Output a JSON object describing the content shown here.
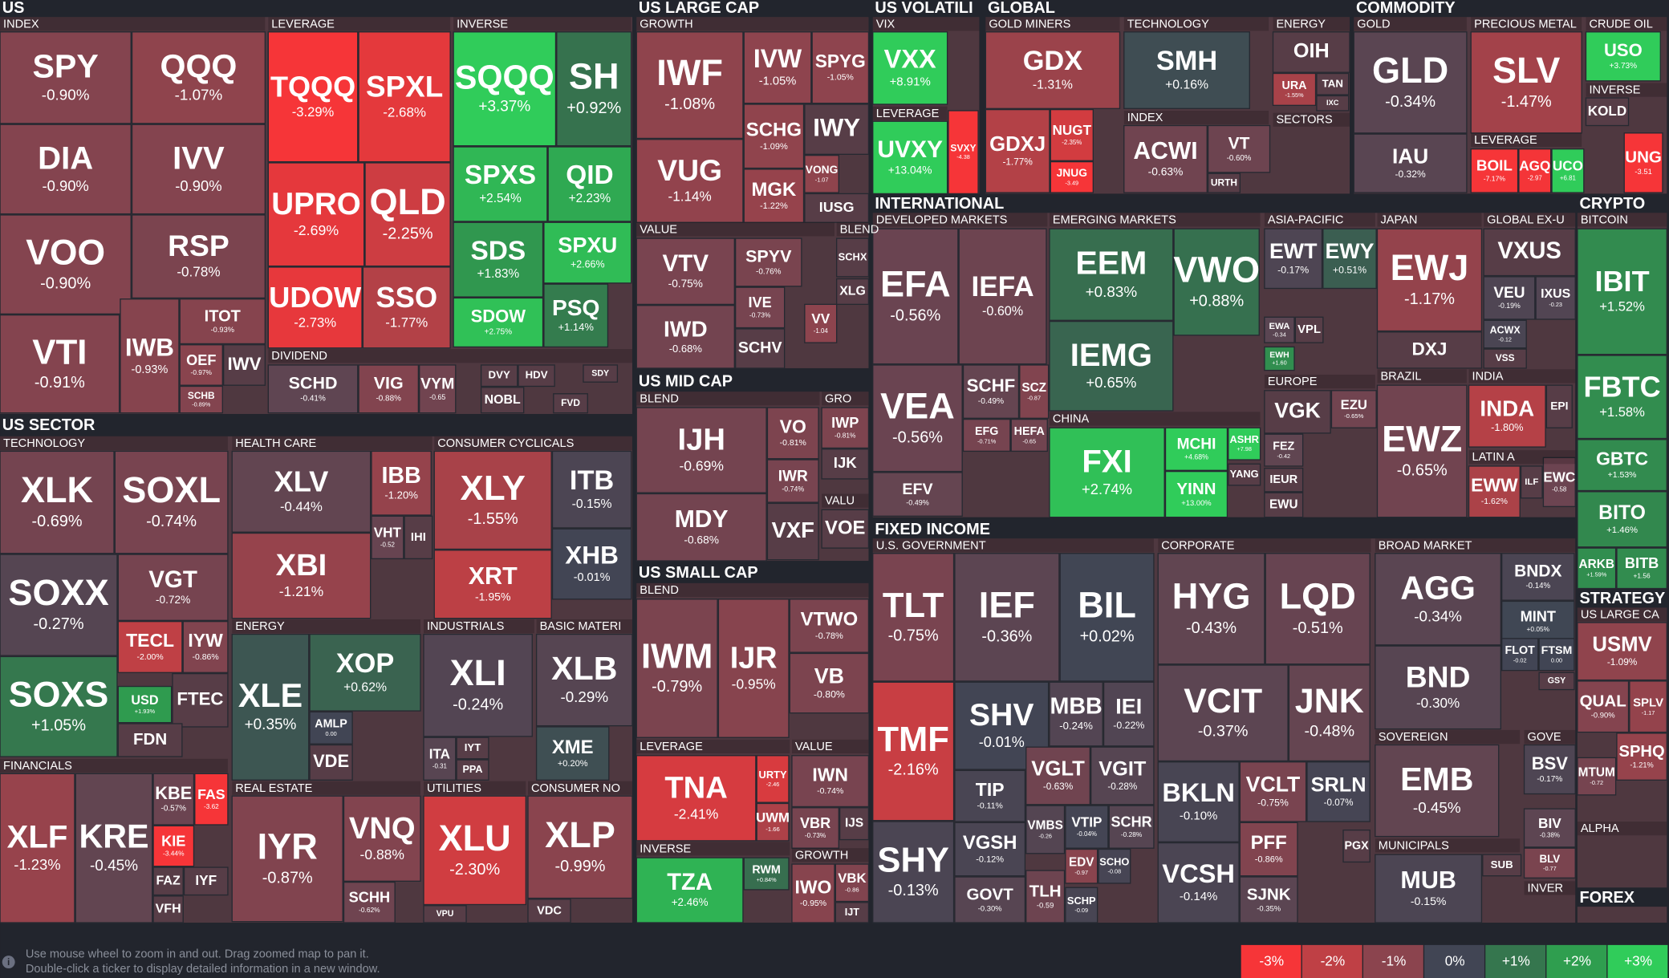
{
  "sections": [
    {
      "title": "US"
    },
    {
      "title": "US LARGE CAP"
    },
    {
      "title": "US VOLATILI"
    },
    {
      "title": "GLOBAL"
    },
    {
      "title": "COMMODITY"
    },
    {
      "title": "INTERNATIONAL"
    },
    {
      "title": "CRYPTO"
    },
    {
      "title": "US SECTOR"
    },
    {
      "title": "US MID CAP"
    },
    {
      "title": "US SMALL CAP"
    },
    {
      "title": "FIXED INCOME"
    },
    {
      "title": "STRATEGY"
    },
    {
      "title": "FOREX"
    }
  ],
  "groups": [
    {
      "title": "INDEX"
    },
    {
      "title": "LEVERAGE"
    },
    {
      "title": "INVERSE"
    },
    {
      "title": "DIVIDEND"
    },
    {
      "title": "GROWTH"
    },
    {
      "title": "VALUE"
    },
    {
      "title": "BLEND"
    },
    {
      "title": "VIX"
    },
    {
      "title": "LEVERAGE"
    },
    {
      "title": "GOLD MINERS"
    },
    {
      "title": "TECHNOLOGY"
    },
    {
      "title": "INDEX"
    },
    {
      "title": "ENERGY"
    },
    {
      "title": "SECTORS"
    },
    {
      "title": "GOLD"
    },
    {
      "title": "PRECIOUS METAL"
    },
    {
      "title": "LEVERAGE"
    },
    {
      "title": "CRUDE OIL"
    },
    {
      "title": "INVERSE"
    },
    {
      "title": "DEVELOPED MARKETS"
    },
    {
      "title": "EMERGING MARKETS"
    },
    {
      "title": "CHINA"
    },
    {
      "title": "ASIA-PACIFIC"
    },
    {
      "title": "EUROPE"
    },
    {
      "title": "JAPAN"
    },
    {
      "title": "GLOBAL EX-U"
    },
    {
      "title": "BRAZIL"
    },
    {
      "title": "INDIA"
    },
    {
      "title": "LATIN A"
    },
    {
      "title": "BITCOIN"
    },
    {
      "title": "BLEND"
    },
    {
      "title": "GRO"
    },
    {
      "title": "VALU"
    },
    {
      "title": "BLEND"
    },
    {
      "title": "LEVERAGE"
    },
    {
      "title": "VALUE"
    },
    {
      "title": "INVERSE"
    },
    {
      "title": "GROWTH"
    },
    {
      "title": "TECHNOLOGY"
    },
    {
      "title": "HEALTH CARE"
    },
    {
      "title": "CONSUMER CYCLICALS"
    },
    {
      "title": "ENERGY"
    },
    {
      "title": "INDUSTRIALS"
    },
    {
      "title": "BASIC MATERI"
    },
    {
      "title": "FINANCIALS"
    },
    {
      "title": "REAL ESTATE"
    },
    {
      "title": "UTILITIES"
    },
    {
      "title": "CONSUMER NO"
    },
    {
      "title": "U.S. GOVERNMENT"
    },
    {
      "title": "CORPORATE"
    },
    {
      "title": "BROAD MARKET"
    },
    {
      "title": "SOVEREIGN"
    },
    {
      "title": "GOVE"
    },
    {
      "title": "MUNICIPALS"
    },
    {
      "title": "INVER"
    },
    {
      "title": "US LARGE CA"
    },
    {
      "title": "ALPHA"
    }
  ],
  "tiles": [
    {
      "ticker": "SPY",
      "change": "-0.90%"
    },
    {
      "ticker": "QQQ",
      "change": "-1.07%"
    },
    {
      "ticker": "DIA",
      "change": "-0.90%"
    },
    {
      "ticker": "IVV",
      "change": "-0.90%"
    },
    {
      "ticker": "VOO",
      "change": "-0.90%"
    },
    {
      "ticker": "RSP",
      "change": "-0.78%"
    },
    {
      "ticker": "VTI",
      "change": "-0.91%"
    },
    {
      "ticker": "IWB",
      "change": "-0.93%"
    },
    {
      "ticker": "ITOT",
      "change": "-0.93%"
    },
    {
      "ticker": "OEF",
      "change": "-0.97%"
    },
    {
      "ticker": "IWV"
    },
    {
      "ticker": "SCHB",
      "change": "-0.89%"
    },
    {
      "ticker": "TQQQ",
      "change": "-3.29%"
    },
    {
      "ticker": "SPXL",
      "change": "-2.68%"
    },
    {
      "ticker": "UPRO",
      "change": "-2.69%"
    },
    {
      "ticker": "QLD",
      "change": "-2.25%"
    },
    {
      "ticker": "UDOW",
      "change": "-2.73%"
    },
    {
      "ticker": "SSO",
      "change": "-1.77%"
    },
    {
      "ticker": "SQQQ",
      "change": "+3.37%"
    },
    {
      "ticker": "SH",
      "change": "+0.92%"
    },
    {
      "ticker": "SPXS",
      "change": "+2.54%"
    },
    {
      "ticker": "QID",
      "change": "+2.23%"
    },
    {
      "ticker": "SDS",
      "change": "+1.83%"
    },
    {
      "ticker": "SPXU",
      "change": "+2.66%"
    },
    {
      "ticker": "SDOW",
      "change": "+2.75%"
    },
    {
      "ticker": "PSQ",
      "change": "+1.14%"
    },
    {
      "ticker": "SCHD",
      "change": "-0.41%"
    },
    {
      "ticker": "VIG",
      "change": "-0.88%"
    },
    {
      "ticker": "VYM",
      "change": "-0.65"
    },
    {
      "ticker": "DVY"
    },
    {
      "ticker": "HDV"
    },
    {
      "ticker": "NOBL"
    },
    {
      "ticker": "SDY"
    },
    {
      "ticker": "FVD"
    },
    {
      "ticker": "IWF",
      "change": "-1.08%"
    },
    {
      "ticker": "IVW",
      "change": "-1.05%"
    },
    {
      "ticker": "SPYG",
      "change": "-1.05%"
    },
    {
      "ticker": "VUG",
      "change": "-1.14%"
    },
    {
      "ticker": "SCHG",
      "change": "-1.09%"
    },
    {
      "ticker": "IWY"
    },
    {
      "ticker": "MGK",
      "change": "-1.22%"
    },
    {
      "ticker": "VONG",
      "change": "-1.07"
    },
    {
      "ticker": "IUSG"
    },
    {
      "ticker": "VTV",
      "change": "-0.75%"
    },
    {
      "ticker": "SPYV",
      "change": "-0.76%"
    },
    {
      "ticker": "IVE",
      "change": "-0.73%"
    },
    {
      "ticker": "IWD",
      "change": "-0.68%"
    },
    {
      "ticker": "SCHV"
    },
    {
      "ticker": "VV",
      "change": "-1.04"
    },
    {
      "ticker": "SCHX"
    },
    {
      "ticker": "XLG"
    },
    {
      "ticker": "VXX",
      "change": "+8.91%"
    },
    {
      "ticker": "UVXY",
      "change": "+13.04%"
    },
    {
      "ticker": "SVXY",
      "change": "-4.38"
    },
    {
      "ticker": "GDX",
      "change": "-1.31%"
    },
    {
      "ticker": "GDXJ",
      "change": "-1.77%"
    },
    {
      "ticker": "NUGT",
      "change": "-2.35%"
    },
    {
      "ticker": "JNUG",
      "change": "-3.49"
    },
    {
      "ticker": "SMH",
      "change": "+0.16%"
    },
    {
      "ticker": "ACWI",
      "change": "-0.63%"
    },
    {
      "ticker": "VT",
      "change": "-0.60%"
    },
    {
      "ticker": "URTH"
    },
    {
      "ticker": "OIH"
    },
    {
      "ticker": "URA",
      "change": "-1.55%"
    },
    {
      "ticker": "TAN"
    },
    {
      "ticker": "IXC"
    },
    {
      "ticker": "GLD",
      "change": "-0.34%"
    },
    {
      "ticker": "IAU",
      "change": "-0.32%"
    },
    {
      "ticker": "SLV",
      "change": "-1.47%"
    },
    {
      "ticker": "BOIL",
      "change": "-7.17%"
    },
    {
      "ticker": "AGQ",
      "change": "-2.97"
    },
    {
      "ticker": "UCO",
      "change": "+6.81"
    },
    {
      "ticker": "USO",
      "change": "+3.73%"
    },
    {
      "ticker": "KOLD"
    },
    {
      "ticker": "UNG",
      "change": "-3.51"
    },
    {
      "ticker": "EFA",
      "change": "-0.56%"
    },
    {
      "ticker": "IEFA",
      "change": "-0.60%"
    },
    {
      "ticker": "VEA",
      "change": "-0.56%"
    },
    {
      "ticker": "EFV",
      "change": "-0.49%"
    },
    {
      "ticker": "SCHF",
      "change": "-0.49%"
    },
    {
      "ticker": "SCZ",
      "change": "-0.87"
    },
    {
      "ticker": "EFG",
      "change": "-0.71%"
    },
    {
      "ticker": "HEFA",
      "change": "-0.65"
    },
    {
      "ticker": "EEM",
      "change": "+0.83%"
    },
    {
      "ticker": "VWO",
      "change": "+0.88%"
    },
    {
      "ticker": "IEMG",
      "change": "+0.65%"
    },
    {
      "ticker": "FXI",
      "change": "+2.74%"
    },
    {
      "ticker": "MCHI",
      "change": "+4.68%"
    },
    {
      "ticker": "ASHR",
      "change": "+7.98"
    },
    {
      "ticker": "YINN",
      "change": "+13.00%"
    },
    {
      "ticker": "YANG"
    },
    {
      "ticker": "EWT",
      "change": "-0.17%"
    },
    {
      "ticker": "EWY",
      "change": "+0.51%"
    },
    {
      "ticker": "EWA",
      "change": "-0.34"
    },
    {
      "ticker": "VPL"
    },
    {
      "ticker": "EWH",
      "change": "+1.60"
    },
    {
      "ticker": "VGK"
    },
    {
      "ticker": "EZU",
      "change": "-0.65%"
    },
    {
      "ticker": "FEZ",
      "change": "-0.42"
    },
    {
      "ticker": "IEUR"
    },
    {
      "ticker": "EWU"
    },
    {
      "ticker": "EWJ",
      "change": "-1.17%"
    },
    {
      "ticker": "DXJ"
    },
    {
      "ticker": "VXUS"
    },
    {
      "ticker": "VEU",
      "change": "-0.19%"
    },
    {
      "ticker": "IXUS",
      "change": "-0.23"
    },
    {
      "ticker": "ACWX",
      "change": "-0.12"
    },
    {
      "ticker": "VSS"
    },
    {
      "ticker": "EWZ",
      "change": "-0.65%"
    },
    {
      "ticker": "INDA",
      "change": "-1.80%"
    },
    {
      "ticker": "EPI"
    },
    {
      "ticker": "EWW",
      "change": "-1.62%"
    },
    {
      "ticker": "ILF"
    },
    {
      "ticker": "EWC",
      "change": "-0.58"
    },
    {
      "ticker": "IBIT",
      "change": "+1.52%"
    },
    {
      "ticker": "FBTC",
      "change": "+1.58%"
    },
    {
      "ticker": "GBTC",
      "change": "+1.53%"
    },
    {
      "ticker": "BITO",
      "change": "+1.46%"
    },
    {
      "ticker": "ARKB",
      "change": "+1.59%"
    },
    {
      "ticker": "BITB",
      "change": "+1.56"
    },
    {
      "ticker": "USMV",
      "change": "-1.09%"
    },
    {
      "ticker": "QUAL",
      "change": "-0.90%"
    },
    {
      "ticker": "SPLV",
      "change": "-1.17"
    },
    {
      "ticker": "MTUM",
      "change": "-0.72"
    },
    {
      "ticker": "SPHQ",
      "change": "-1.21%"
    },
    {
      "ticker": "IJH",
      "change": "-0.69%"
    },
    {
      "ticker": "VO",
      "change": "-0.81%"
    },
    {
      "ticker": "IWR",
      "change": "-0.74%"
    },
    {
      "ticker": "MDY",
      "change": "-0.68%"
    },
    {
      "ticker": "VXF"
    },
    {
      "ticker": "IWP",
      "change": "-0.81%"
    },
    {
      "ticker": "IJK"
    },
    {
      "ticker": "VOE"
    },
    {
      "ticker": "IWM",
      "change": "-0.79%"
    },
    {
      "ticker": "IJR",
      "change": "-0.95%"
    },
    {
      "ticker": "VTWO",
      "change": "-0.78%"
    },
    {
      "ticker": "VB",
      "change": "-0.80%"
    },
    {
      "ticker": "TNA",
      "change": "-2.41%"
    },
    {
      "ticker": "URTY",
      "change": "-2.46"
    },
    {
      "ticker": "UWM",
      "change": "-1.66"
    },
    {
      "ticker": "IWN",
      "change": "-0.74%"
    },
    {
      "ticker": "VBR",
      "change": "-0.73%"
    },
    {
      "ticker": "IJS"
    },
    {
      "ticker": "TZA",
      "change": "+2.46%"
    },
    {
      "ticker": "RWM",
      "change": "+0.84%"
    },
    {
      "ticker": "IWO",
      "change": "-0.95%"
    },
    {
      "ticker": "VBK",
      "change": "-0.86"
    },
    {
      "ticker": "IJT"
    },
    {
      "ticker": "TLT",
      "change": "-0.75%"
    },
    {
      "ticker": "IEF",
      "change": "-0.36%"
    },
    {
      "ticker": "BIL",
      "change": "+0.02%"
    },
    {
      "ticker": "TMF",
      "change": "-2.16%"
    },
    {
      "ticker": "SHY",
      "change": "-0.13%"
    },
    {
      "ticker": "SHV",
      "change": "-0.01%"
    },
    {
      "ticker": "MBB",
      "change": "-0.24%"
    },
    {
      "ticker": "IEI",
      "change": "-0.22%"
    },
    {
      "ticker": "TIP",
      "change": "-0.11%"
    },
    {
      "ticker": "VGLT",
      "change": "-0.63%"
    },
    {
      "ticker": "VGIT",
      "change": "-0.28%"
    },
    {
      "ticker": "VGSH",
      "change": "-0.12%"
    },
    {
      "ticker": "VMBS",
      "change": "-0.26"
    },
    {
      "ticker": "VTIP",
      "change": "-0.04%"
    },
    {
      "ticker": "SCHR",
      "change": "-0.28%"
    },
    {
      "ticker": "GOVT",
      "change": "-0.30%"
    },
    {
      "ticker": "TLH",
      "change": "-0.59"
    },
    {
      "ticker": "EDV",
      "change": "-0.97"
    },
    {
      "ticker": "SCHO",
      "change": "-0.08"
    },
    {
      "ticker": "SCHP",
      "change": "-0.09"
    },
    {
      "ticker": "HYG",
      "change": "-0.43%"
    },
    {
      "ticker": "LQD",
      "change": "-0.51%"
    },
    {
      "ticker": "VCIT",
      "change": "-0.37%"
    },
    {
      "ticker": "JNK",
      "change": "-0.48%"
    },
    {
      "ticker": "BKLN",
      "change": "-0.10%"
    },
    {
      "ticker": "VCLT",
      "change": "-0.75%"
    },
    {
      "ticker": "SRLN",
      "change": "-0.07%"
    },
    {
      "ticker": "VCSH",
      "change": "-0.14%"
    },
    {
      "ticker": "PFF",
      "change": "-0.86%"
    },
    {
      "ticker": "PGX"
    },
    {
      "ticker": "SJNK",
      "change": "-0.35%"
    },
    {
      "ticker": "AGG",
      "change": "-0.34%"
    },
    {
      "ticker": "BNDX",
      "change": "-0.14%"
    },
    {
      "ticker": "MINT",
      "change": "+0.05%"
    },
    {
      "ticker": "BND",
      "change": "-0.30%"
    },
    {
      "ticker": "FLOT",
      "change": "-0.02"
    },
    {
      "ticker": "FTSM",
      "change": "0.00"
    },
    {
      "ticker": "GSY"
    },
    {
      "ticker": "EMB",
      "change": "-0.45%"
    },
    {
      "ticker": "BSV",
      "change": "-0.17%"
    },
    {
      "ticker": "BIV",
      "change": "-0.38%"
    },
    {
      "ticker": "BLV",
      "change": "-0.77"
    },
    {
      "ticker": "MUB",
      "change": "-0.15%"
    },
    {
      "ticker": "SUB"
    },
    {
      "ticker": "XLK",
      "change": "-0.69%"
    },
    {
      "ticker": "SOXL",
      "change": "-0.74%"
    },
    {
      "ticker": "SOXX",
      "change": "-0.27%"
    },
    {
      "ticker": "VGT",
      "change": "-0.72%"
    },
    {
      "ticker": "TECL",
      "change": "-2.00%"
    },
    {
      "ticker": "IYW",
      "change": "-0.86%"
    },
    {
      "ticker": "SOXS",
      "change": "+1.05%"
    },
    {
      "ticker": "USD",
      "change": "+1.93%"
    },
    {
      "ticker": "FTEC"
    },
    {
      "ticker": "FDN"
    },
    {
      "ticker": "XLV",
      "change": "-0.44%"
    },
    {
      "ticker": "IBB",
      "change": "-1.20%"
    },
    {
      "ticker": "XBI",
      "change": "-1.21%"
    },
    {
      "ticker": "VHT",
      "change": "-0.52"
    },
    {
      "ticker": "IHI"
    },
    {
      "ticker": "XLY",
      "change": "-1.55%"
    },
    {
      "ticker": "ITB",
      "change": "-0.15%"
    },
    {
      "ticker": "XRT",
      "change": "-1.95%"
    },
    {
      "ticker": "XHB",
      "change": "-0.01%"
    },
    {
      "ticker": "XLE",
      "change": "+0.35%"
    },
    {
      "ticker": "XOP",
      "change": "+0.62%"
    },
    {
      "ticker": "AMLP",
      "change": "0.00"
    },
    {
      "ticker": "VDE"
    },
    {
      "ticker": "XLI",
      "change": "-0.24%"
    },
    {
      "ticker": "ITA",
      "change": "-0.31"
    },
    {
      "ticker": "IYT"
    },
    {
      "ticker": "PPA"
    },
    {
      "ticker": "XLB",
      "change": "-0.29%"
    },
    {
      "ticker": "XME",
      "change": "+0.20%"
    },
    {
      "ticker": "IYR",
      "change": "-0.87%"
    },
    {
      "ticker": "VNQ",
      "change": "-0.88%"
    },
    {
      "ticker": "SCHH",
      "change": "-0.62%"
    },
    {
      "ticker": "XLU",
      "change": "-2.30%"
    },
    {
      "ticker": "VPU"
    },
    {
      "ticker": "XLP",
      "change": "-0.99%"
    },
    {
      "ticker": "VDC"
    },
    {
      "ticker": "XLF",
      "change": "-1.23%"
    },
    {
      "ticker": "KRE",
      "change": "-0.45%"
    },
    {
      "ticker": "KBE",
      "change": "-0.57%"
    },
    {
      "ticker": "FAS",
      "change": "-3.62"
    },
    {
      "ticker": "KIE",
      "change": "-3.44%"
    },
    {
      "ticker": "FAZ"
    },
    {
      "ticker": "IYF"
    },
    {
      "ticker": "VFH"
    }
  ],
  "footer": {
    "hint_lines": [
      "Use mouse wheel to zoom in and out. Drag zoomed map to pan it.",
      "Double-click a ticker to display detailed information in a new window."
    ],
    "icon": "i"
  },
  "legend": [
    {
      "label": "-3%",
      "color": "#f63538"
    },
    {
      "label": "-2%",
      "color": "#bf4045"
    },
    {
      "label": "-1%",
      "color": "#8b444e"
    },
    {
      "label": "0%",
      "color": "#414554"
    },
    {
      "label": "+1%",
      "color": "#35764e"
    },
    {
      "label": "+2%",
      "color": "#2f9e4f"
    },
    {
      "label": "+3%",
      "color": "#30cc5a"
    }
  ]
}
